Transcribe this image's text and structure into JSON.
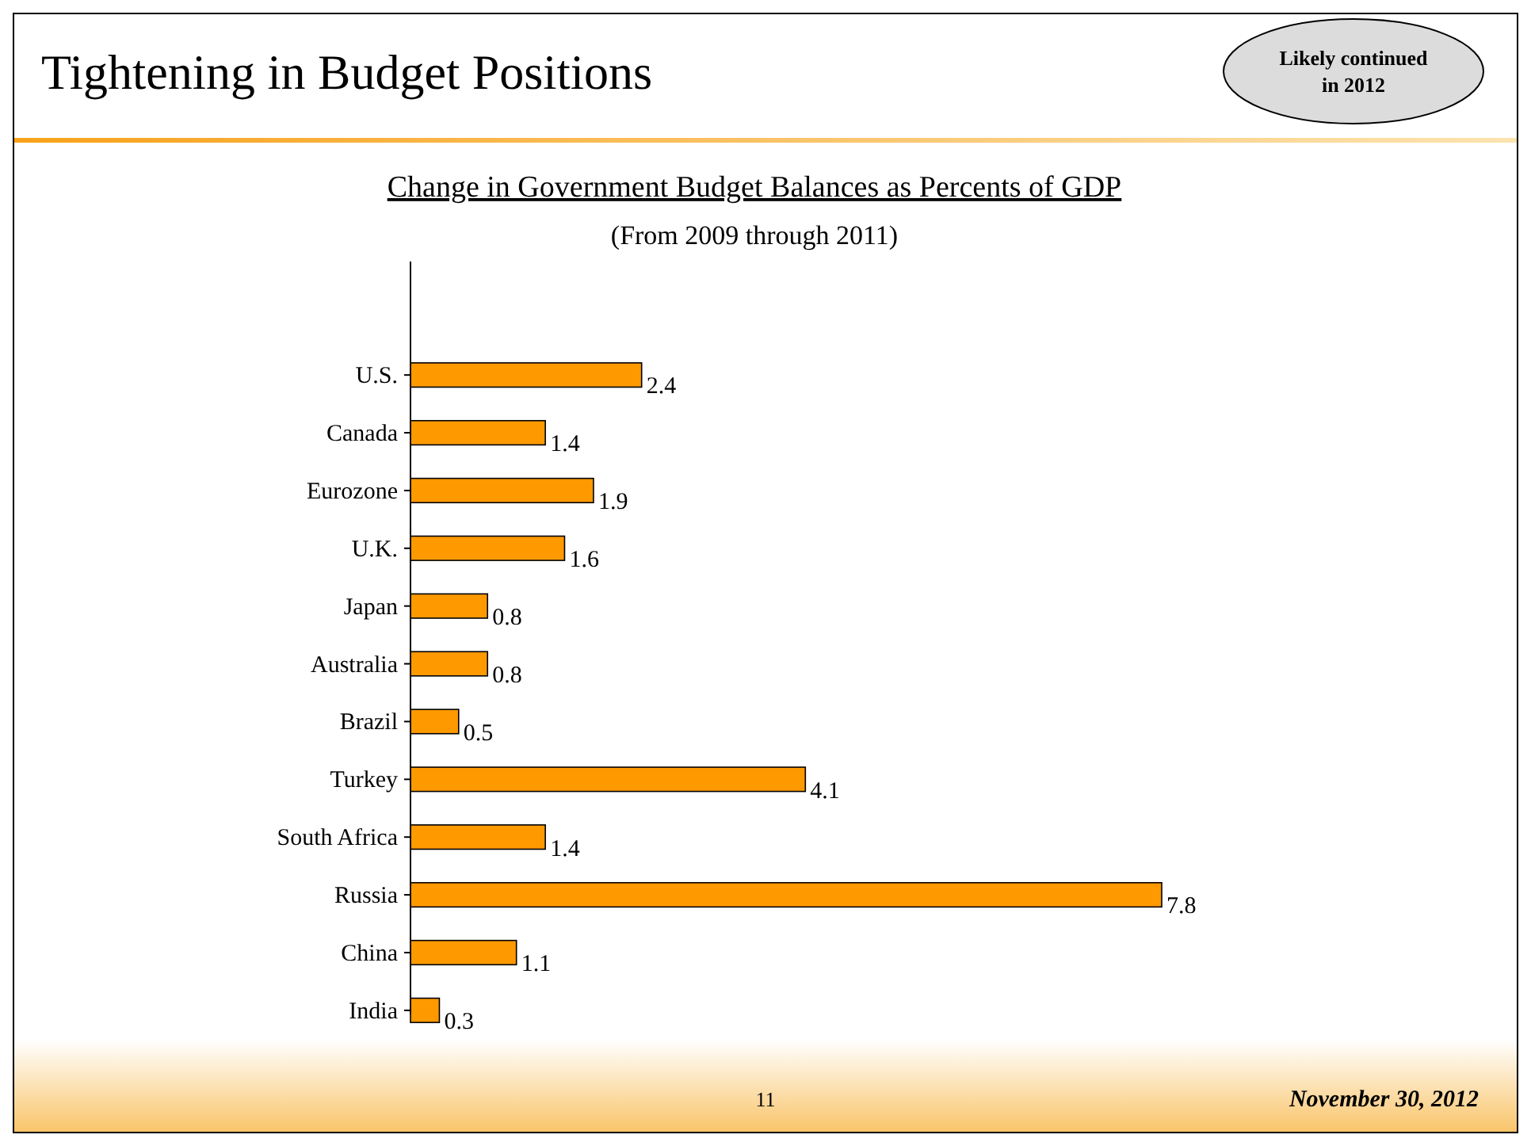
{
  "chart_data": {
    "type": "bar",
    "orientation": "horizontal",
    "title": "Tightening in Budget Positions",
    "subtitle": "Change in Government Budget Balances as Percents of GDP",
    "categories": [
      "U.S.",
      "Canada",
      "Eurozone",
      "U.K.",
      "Japan",
      "Australia",
      "Brazil",
      "Turkey",
      "South Africa",
      "Russia",
      "China",
      "India"
    ],
    "values": [
      2.4,
      1.4,
      1.9,
      1.6,
      0.8,
      0.8,
      0.5,
      4.1,
      1.4,
      7.8,
      1.1,
      0.3
    ],
    "color": "#ff9900",
    "data_labels": true,
    "annotations": [
      "(From 2009 through 2011)",
      "Likely continued in 2012",
      "11",
      "November 30, 2012"
    ]
  }
}
